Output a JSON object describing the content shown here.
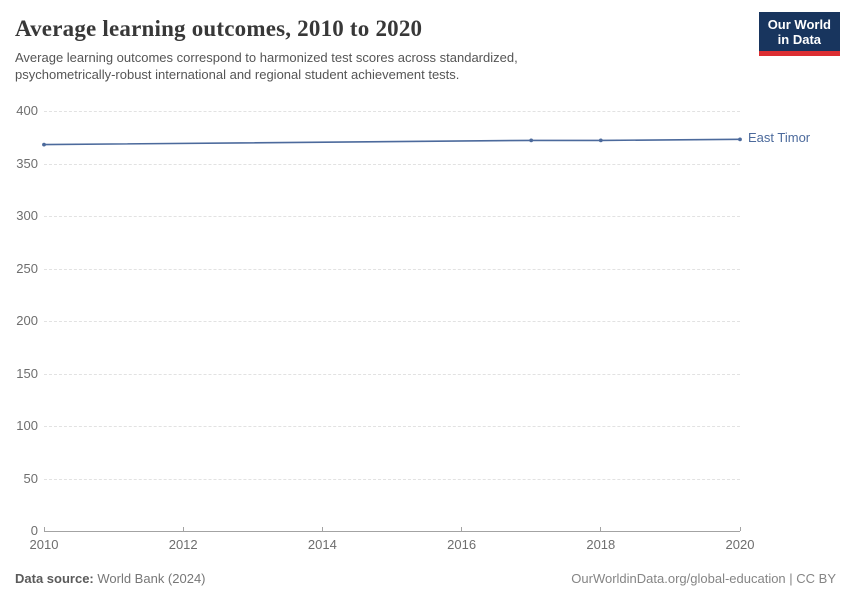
{
  "header": {
    "title": "Average learning outcomes, 2010 to 2020",
    "subtitle": "Average learning outcomes correspond to harmonized test scores across standardized, psychometrically-robust international and regional student achievement tests.",
    "logo": {
      "line1": "Our World",
      "line2": "in Data",
      "bg_color": "#18355e",
      "accent_color": "#dc2e32"
    }
  },
  "chart_data": {
    "type": "line",
    "title": "Average learning outcomes, 2010 to 2020",
    "x": [
      2010,
      2017,
      2018,
      2020
    ],
    "series": [
      {
        "name": "East Timor",
        "color": "#4C6A9C",
        "values": [
          368,
          372,
          372,
          373
        ]
      }
    ],
    "xlim": [
      2010,
      2020
    ],
    "ylim": [
      0,
      400
    ],
    "xticks": [
      2010,
      2012,
      2014,
      2016,
      2018,
      2020
    ],
    "yticks": [
      0,
      50,
      100,
      150,
      200,
      250,
      300,
      350,
      400
    ],
    "grid": "horizontal-dashed",
    "legend_position": "end-of-line-label",
    "xlabel": "",
    "ylabel": ""
  },
  "footer": {
    "data_source_label": "Data source:",
    "data_source_value": " World Bank (2024)",
    "attribution": "OurWorldinData.org/global-education | CC BY"
  },
  "colors": {
    "line": "#4C6A9C",
    "gridline": "#e2e2e2",
    "axis": "#a3a3a3",
    "tick_text": "#6e6e6e",
    "title_text": "#383838",
    "subtitle_text": "#555555"
  }
}
